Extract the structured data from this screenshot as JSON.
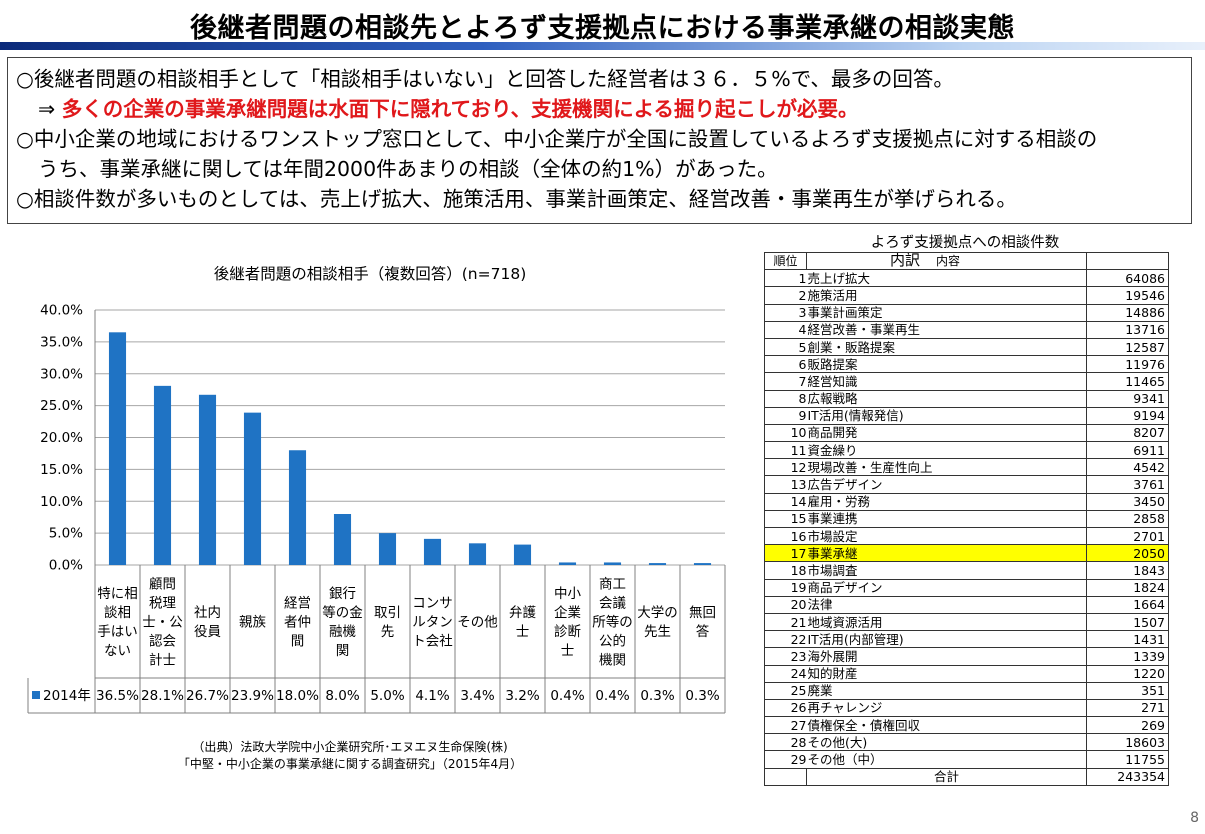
{
  "title": "後継者問題の相談先とよろず支援拠点における事業承継の相談実態",
  "summary": {
    "line1": "○後継者問題の相談相手として「相談相手はいない」と回答した経営者は３６．５%で、最多の回答。",
    "arrow": "⇒ ",
    "line2": "多くの企業の事業承継問題は水面下に隠れており、支援機関による掘り起こしが必要。",
    "line3": "○中小企業の地域におけるワンストップ窓口として、中小企業庁が全国に設置しているよろず支援拠点に対する相談の",
    "line4": "うち、事業承継に関しては年間2000件あまりの相談（全体の約1%）があった。",
    "line5": "○相談件数が多いものとしては、売上げ拡大、施策活用、事業計画策定、経営改善・事業再生が挙げられる。"
  },
  "chart_data": {
    "type": "bar",
    "title": "後継者問題の相談相手（複数回答）(n=718)",
    "categories": [
      [
        "特に相",
        "談相",
        "手はい",
        "ない"
      ],
      [
        "顧問",
        "税理",
        "士・公",
        "認会",
        "計士"
      ],
      [
        "社内",
        "役員"
      ],
      [
        "親族"
      ],
      [
        "経営",
        "者仲",
        "間"
      ],
      [
        "銀行",
        "等の金",
        "融機",
        "関"
      ],
      [
        "取引",
        "先"
      ],
      [
        "コンサ",
        "ルタン",
        "ト会社"
      ],
      [
        "その他"
      ],
      [
        "弁護",
        "士"
      ],
      [
        "中小",
        "企業",
        "診断",
        "士"
      ],
      [
        "商工",
        "会議",
        "所等の",
        "公的",
        "機関"
      ],
      [
        "大学の",
        "先生"
      ],
      [
        "無回",
        "答"
      ]
    ],
    "series": [
      {
        "name": "2014年",
        "values": [
          36.5,
          28.1,
          26.7,
          23.9,
          18.0,
          8.0,
          5.0,
          4.1,
          3.4,
          3.2,
          0.4,
          0.4,
          0.3,
          0.3
        ],
        "labels": [
          "36.5%",
          "28.1%",
          "26.7%",
          "23.9%",
          "18.0%",
          "8.0%",
          "5.0%",
          "4.1%",
          "3.4%",
          "3.2%",
          "0.4%",
          "0.4%",
          "0.3%",
          "0.3%"
        ]
      }
    ],
    "yticks": [
      "0.0%",
      "5.0%",
      "10.0%",
      "15.0%",
      "20.0%",
      "25.0%",
      "30.0%",
      "35.0%",
      "40.0%"
    ],
    "ylim": [
      0,
      40
    ],
    "grid": true,
    "bar_color": "#1f73c4",
    "legend_position": "data-table"
  },
  "source": {
    "line1": "（出典）法政大学院中小企業研究所･エヌエヌ生命保険(株)",
    "line2": "「中堅・中小企業の事業承継に関する調査研究」（2015年4月）"
  },
  "consult_table": {
    "title": "よろず支援拠点への相談件数",
    "header_rank": "順位",
    "header_item_big": "内訳",
    "header_item_small": "内容",
    "rows": [
      {
        "rank": "1",
        "name": "売上げ拡大",
        "count": "64086"
      },
      {
        "rank": "2",
        "name": "施策活用",
        "count": "19546"
      },
      {
        "rank": "3",
        "name": "事業計画策定",
        "count": "14886"
      },
      {
        "rank": "4",
        "name": "経営改善・事業再生",
        "count": "13716"
      },
      {
        "rank": "5",
        "name": "創業・販路提案",
        "count": "12587"
      },
      {
        "rank": "6",
        "name": "販路提案",
        "count": "11976"
      },
      {
        "rank": "7",
        "name": "経営知識",
        "count": "11465"
      },
      {
        "rank": "8",
        "name": "広報戦略",
        "count": "9341"
      },
      {
        "rank": "9",
        "name": "IT活用(情報発信)",
        "count": "9194"
      },
      {
        "rank": "10",
        "name": "商品開発",
        "count": "8207"
      },
      {
        "rank": "11",
        "name": "資金繰り",
        "count": "6911"
      },
      {
        "rank": "12",
        "name": "現場改善・生産性向上",
        "count": "4542"
      },
      {
        "rank": "13",
        "name": "広告デザイン",
        "count": "3761"
      },
      {
        "rank": "14",
        "name": "雇用・労務",
        "count": "3450"
      },
      {
        "rank": "15",
        "name": "事業連携",
        "count": "2858"
      },
      {
        "rank": "16",
        "name": "市場設定",
        "count": "2701"
      },
      {
        "rank": "17",
        "name": "事業承継",
        "count": "2050",
        "highlight": true
      },
      {
        "rank": "18",
        "name": "市場調査",
        "count": "1843"
      },
      {
        "rank": "19",
        "name": "商品デザイン",
        "count": "1824"
      },
      {
        "rank": "20",
        "name": "法律",
        "count": "1664"
      },
      {
        "rank": "21",
        "name": "地域資源活用",
        "count": "1507"
      },
      {
        "rank": "22",
        "name": "IT活用(内部管理)",
        "count": "1431"
      },
      {
        "rank": "23",
        "name": "海外展開",
        "count": "1339"
      },
      {
        "rank": "24",
        "name": "知的財産",
        "count": "1220"
      },
      {
        "rank": "25",
        "name": "廃業",
        "count": "351"
      },
      {
        "rank": "26",
        "name": "再チャレンジ",
        "count": "271"
      },
      {
        "rank": "27",
        "name": "債権保全・債権回収",
        "count": "269"
      },
      {
        "rank": "28",
        "name": "その他(大)",
        "count": "18603"
      },
      {
        "rank": "29",
        "name": "その他（中）",
        "count": "11755"
      }
    ],
    "total_label": "合計",
    "total_count": "243354",
    "highlight_color": "#ffff00"
  },
  "page_number": "8"
}
